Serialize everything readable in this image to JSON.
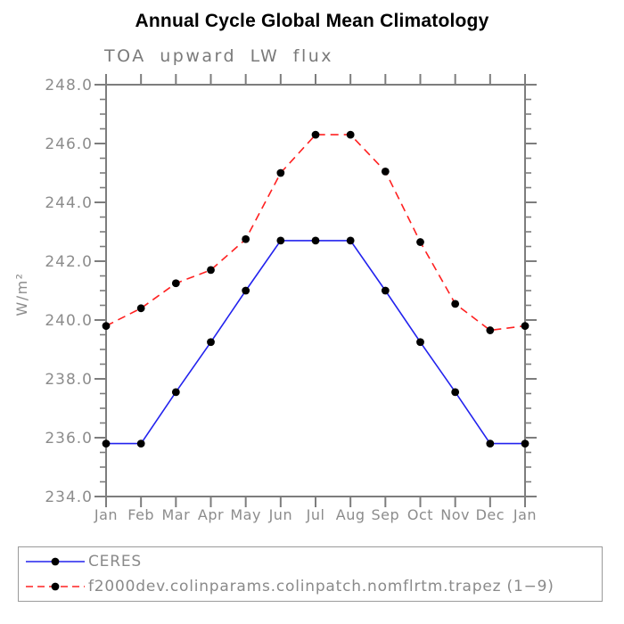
{
  "title": "Annual Cycle Global Mean Climatology",
  "subtitle": "TOA upward LW flux",
  "legend": {
    "items": [
      {
        "label": "CERES",
        "color": "#2222ee",
        "style": "solid"
      },
      {
        "label": "f2000dev.colinparams.colinpatch.nomflrtm.trapez (1−9)",
        "color": "#ff2020",
        "style": "dashed"
      }
    ]
  },
  "chart_data": {
    "type": "line",
    "title": "Annual Cycle Global Mean Climatology",
    "subtitle": "TOA upward LW flux",
    "xlabel": "",
    "ylabel": "W/m²",
    "x_categories": [
      "Jan",
      "Feb",
      "Mar",
      "Apr",
      "May",
      "Jun",
      "Jul",
      "Aug",
      "Sep",
      "Oct",
      "Nov",
      "Dec",
      "Jan"
    ],
    "ylim": [
      234.0,
      248.0
    ],
    "ytick_major_interval": 2.0,
    "ytick_minor_interval": 0.5,
    "grid": false,
    "legend_position": "bottom-left-box",
    "series": [
      {
        "name": "CERES",
        "color": "#2222ee",
        "line_style": "solid",
        "marker": "filled-circle",
        "marker_color": "#000000",
        "values": [
          235.8,
          235.8,
          237.55,
          239.25,
          241.0,
          242.7,
          242.7,
          242.7,
          241.0,
          239.25,
          237.55,
          235.8,
          235.8
        ]
      },
      {
        "name": "f2000dev.colinparams.colinpatch.nomflrtm.trapez (1−9)",
        "color": "#ff2020",
        "line_style": "dashed",
        "marker": "filled-circle",
        "marker_color": "#000000",
        "values": [
          239.8,
          240.4,
          241.25,
          241.7,
          242.75,
          245.0,
          246.3,
          246.3,
          245.05,
          242.65,
          240.55,
          239.65,
          239.8
        ]
      }
    ],
    "colors": {
      "axis": "#7d7d7d",
      "tick_labels": "#8c8c8c",
      "title": "#000000",
      "subtitle": "#7a7a7a",
      "legend_text": "#8a8a8a",
      "background": "#ffffff"
    }
  }
}
